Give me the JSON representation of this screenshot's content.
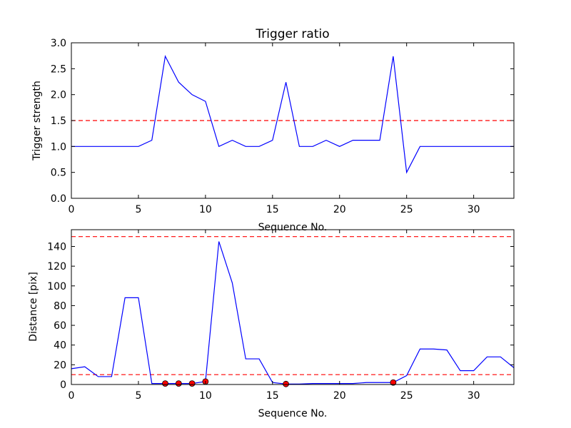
{
  "chart_data": [
    {
      "type": "line",
      "title": "Trigger ratio",
      "xlabel": "Sequence No.",
      "ylabel": "Trigger strength",
      "xlim": [
        0,
        33
      ],
      "ylim": [
        0,
        3.0
      ],
      "xticks": [
        0,
        5,
        10,
        15,
        20,
        25,
        30
      ],
      "xtick_labels": [
        "0",
        "5",
        "10",
        "15",
        "20",
        "25",
        "30"
      ],
      "yticks": [
        0,
        0.5,
        1.0,
        1.5,
        2.0,
        2.5,
        3.0
      ],
      "ytick_labels": [
        "0.0",
        "0.5",
        "1.0",
        "1.5",
        "2.0",
        "2.5",
        "3.0"
      ],
      "grid": false,
      "series": [
        {
          "color": "#0000ff",
          "style": "solid",
          "x": [
            0,
            1,
            2,
            3,
            4,
            5,
            6,
            7,
            8,
            9,
            10,
            11,
            12,
            13,
            14,
            15,
            16,
            17,
            18,
            19,
            20,
            21,
            22,
            23,
            24,
            25,
            26,
            27,
            28,
            29,
            30,
            31,
            32,
            33
          ],
          "y": [
            1.0,
            1.0,
            1.0,
            1.0,
            1.0,
            1.0,
            1.12,
            2.74,
            2.24,
            2.0,
            1.87,
            1.0,
            1.12,
            1.0,
            1.0,
            1.12,
            2.24,
            1.0,
            1.0,
            1.12,
            1.0,
            1.12,
            1.12,
            1.12,
            2.74,
            0.5,
            1.0,
            1.0,
            1.0,
            1.0,
            1.0,
            1.0,
            1.0,
            1.0
          ]
        }
      ],
      "hlines": [
        {
          "y": 1.5,
          "color": "#ff0000",
          "style": "dashed"
        }
      ]
    },
    {
      "type": "line",
      "title": "",
      "xlabel": "Sequence No.",
      "ylabel": "Distance [pix]",
      "xlim": [
        0,
        33
      ],
      "ylim": [
        0,
        157
      ],
      "xticks": [
        0,
        5,
        10,
        15,
        20,
        25,
        30
      ],
      "xtick_labels": [
        "0",
        "5",
        "10",
        "15",
        "20",
        "25",
        "30"
      ],
      "yticks": [
        0,
        20,
        40,
        60,
        80,
        100,
        120,
        140
      ],
      "ytick_labels": [
        "0",
        "20",
        "40",
        "60",
        "80",
        "100",
        "120",
        "140"
      ],
      "grid": false,
      "series": [
        {
          "color": "#0000ff",
          "style": "solid",
          "x": [
            0,
            1,
            2,
            3,
            4,
            5,
            6,
            7,
            8,
            9,
            10,
            11,
            12,
            13,
            14,
            15,
            16,
            17,
            18,
            19,
            20,
            21,
            22,
            23,
            24,
            25,
            26,
            27,
            28,
            29,
            30,
            31,
            32,
            33
          ],
          "y": [
            16,
            18,
            8,
            8,
            88,
            88,
            1,
            1,
            1,
            1,
            3,
            145,
            103,
            26,
            26,
            2,
            0.5,
            0.5,
            1,
            1,
            1,
            1,
            2,
            2,
            2,
            9,
            36,
            36,
            35,
            14,
            14,
            28,
            28,
            17
          ]
        }
      ],
      "markers": {
        "color": "#ff0000",
        "x": [
          7,
          8,
          9,
          10,
          16,
          24
        ],
        "y": [
          1,
          1,
          1,
          3,
          0.5,
          2
        ]
      },
      "hlines": [
        {
          "y": 150,
          "color": "#ff0000",
          "style": "dashed"
        },
        {
          "y": 10,
          "color": "#ff0000",
          "style": "dashed"
        }
      ]
    }
  ]
}
